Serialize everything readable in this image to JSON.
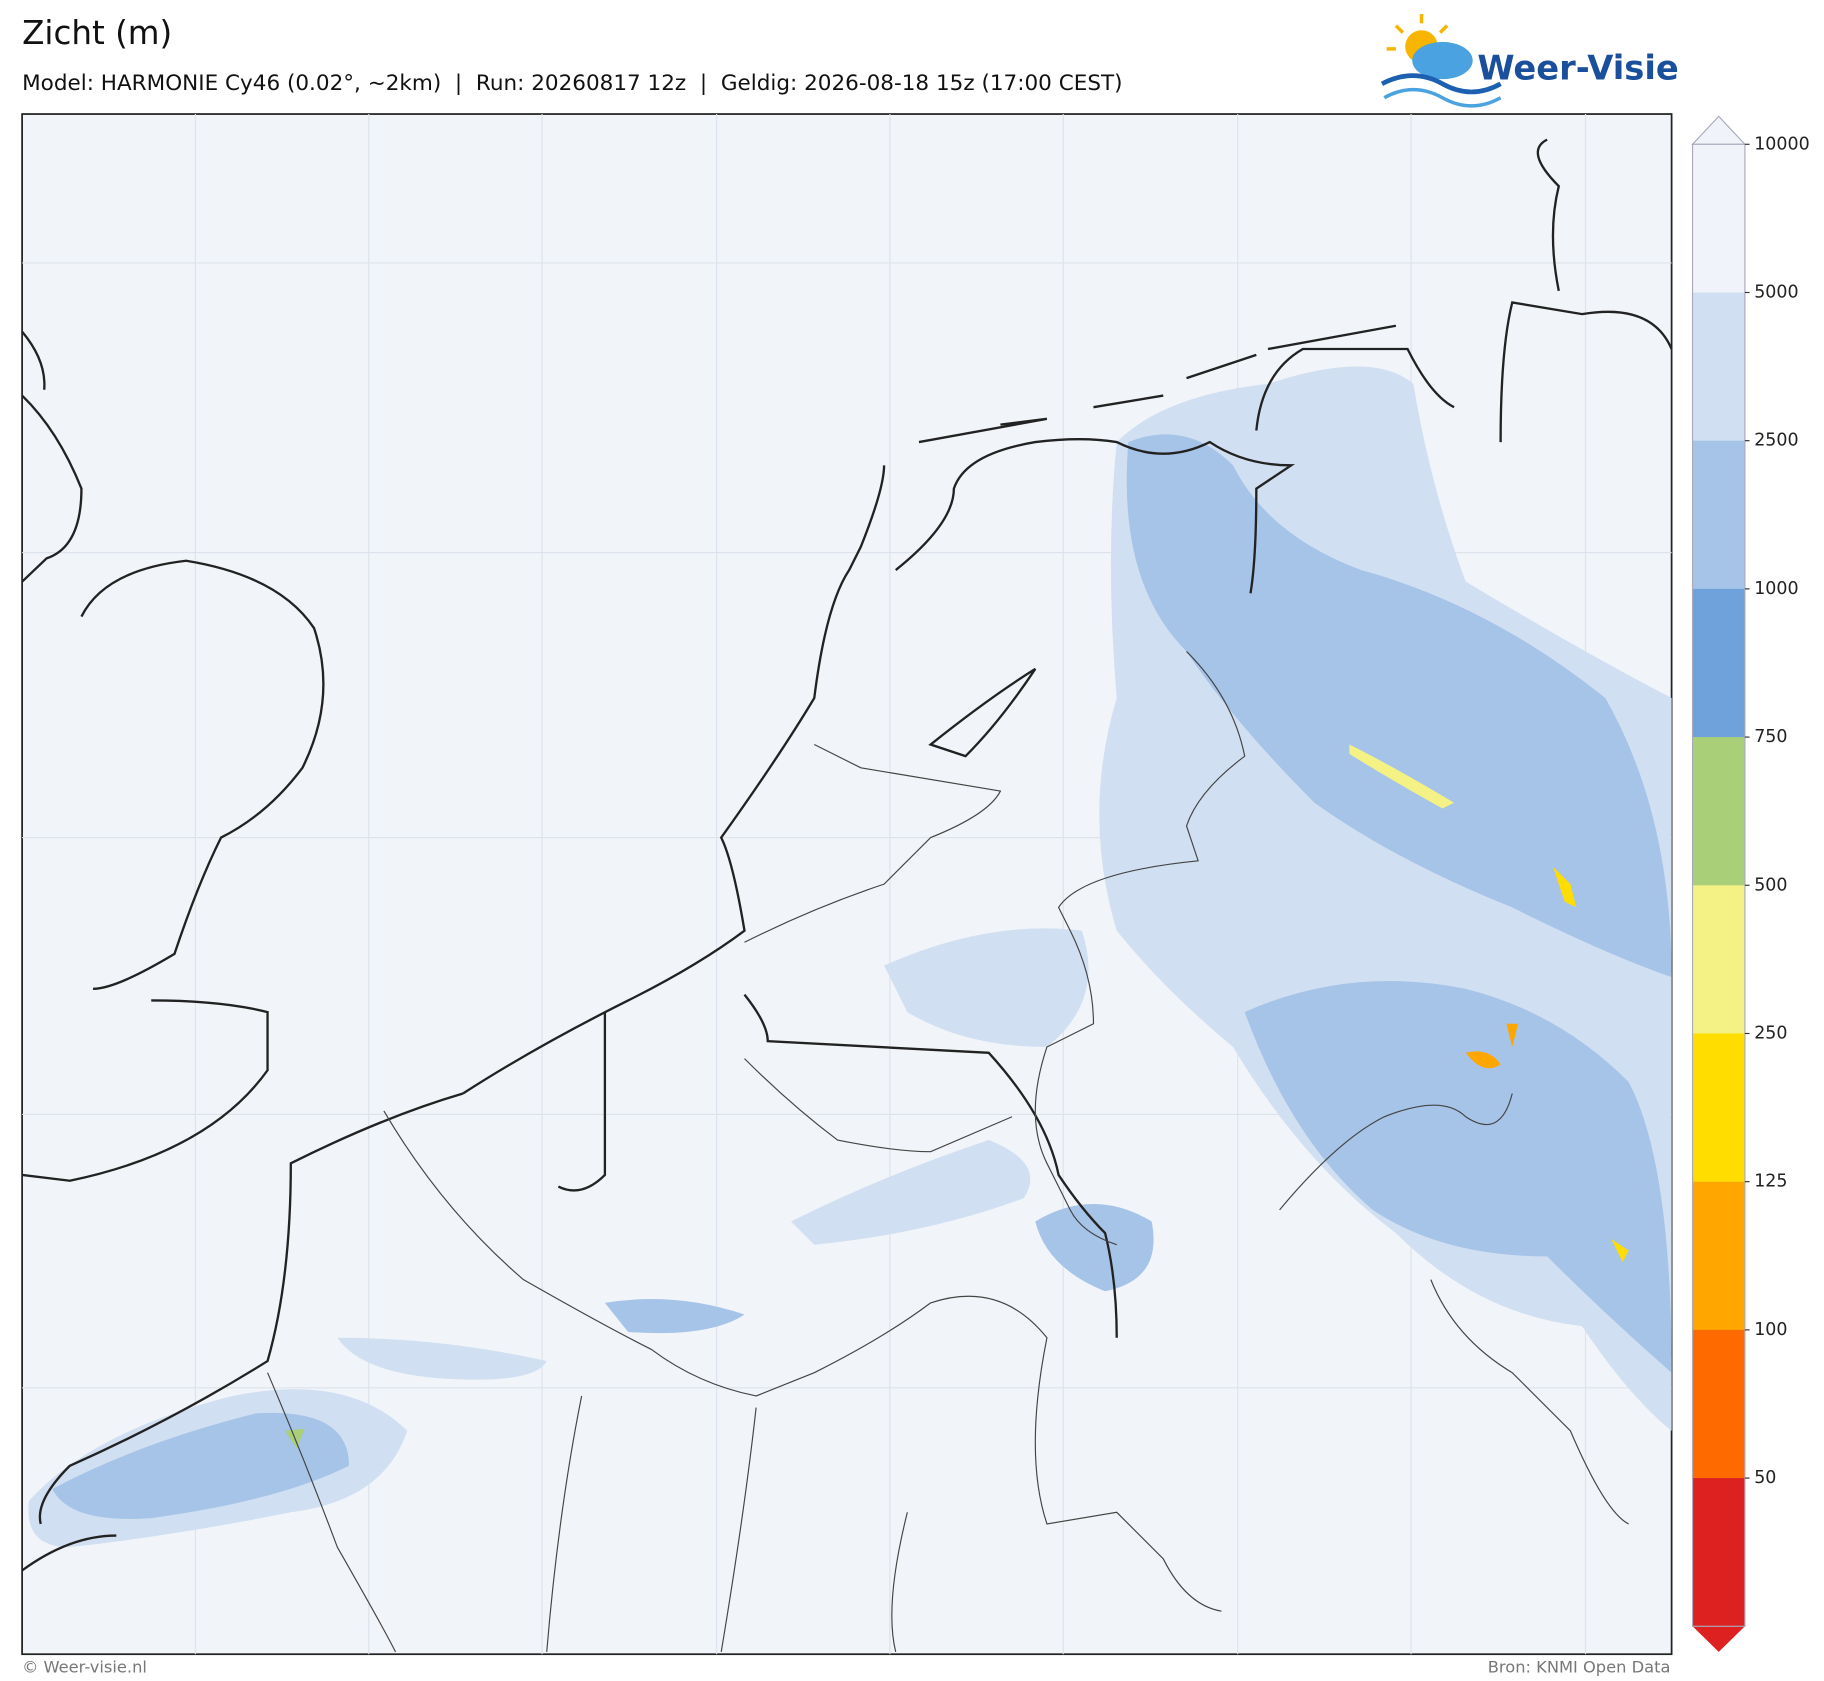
{
  "title": "Zicht (m)",
  "subtitle": "Model: HARMONIE Cy46 (0.02°, ~2km)  |  Run: 20260817 12z  |  Geldig: 2026-08-18 15z (17:00 CEST)",
  "logo": "Weer-Visie",
  "footer_left": "© Weer-visie.nl",
  "footer_right": "Bron: KNMI Open Data",
  "colorbar": {
    "ticks": [
      10000,
      5000,
      2500,
      1000,
      750,
      500,
      250,
      125,
      100,
      50
    ],
    "extend_top_color": "#f0f4fa",
    "colors": [
      "#f0f4fa",
      "#d0dff1",
      "#a6c3e8",
      "#6fa1da",
      "#a9cf78",
      "#f4f285",
      "#ffdd00",
      "#ffa600",
      "#ff6a00",
      "#dd2020"
    ]
  }
}
